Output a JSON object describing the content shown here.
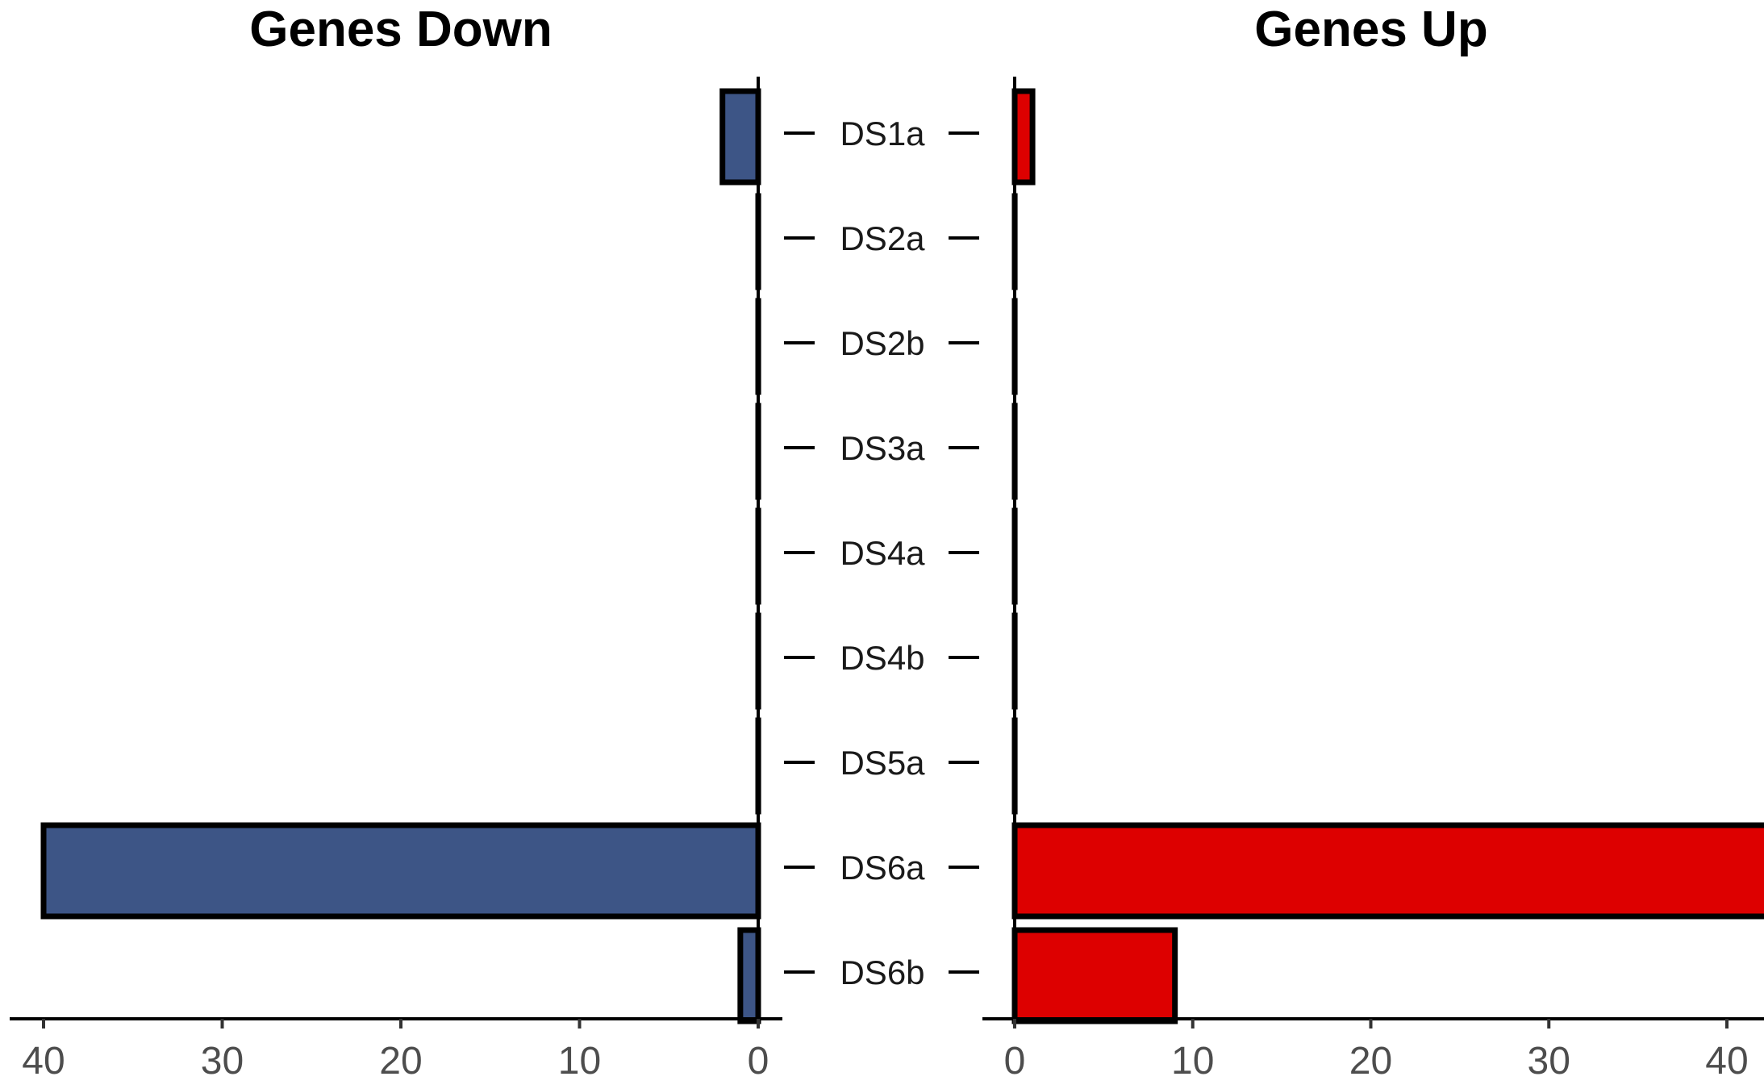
{
  "chart_data": [
    {
      "type": "bar",
      "orientation": "horizontal",
      "direction": "reversed",
      "title": "Genes Down",
      "categories": [
        "DS1a",
        "DS2a",
        "DS2b",
        "DS3a",
        "DS4a",
        "DS4b",
        "DS5a",
        "DS6a",
        "DS6b"
      ],
      "values": [
        2,
        0,
        0,
        0,
        0,
        0,
        0,
        40,
        1
      ],
      "xticks": [
        40,
        30,
        20,
        10,
        0
      ],
      "xlim": [
        0,
        42
      ],
      "color": "#3d5586",
      "grid": false
    },
    {
      "type": "bar",
      "orientation": "horizontal",
      "title": "Genes Up",
      "categories": [
        "DS1a",
        "DS2a",
        "DS2b",
        "DS3a",
        "DS4a",
        "DS4b",
        "DS5a",
        "DS6a",
        "DS6b"
      ],
      "values": [
        1,
        0,
        0,
        0,
        0,
        0,
        0,
        45,
        9
      ],
      "xticks": [
        0,
        10,
        20,
        30,
        40
      ],
      "xlim": [
        0,
        47
      ],
      "color": "#dd0000",
      "grid": false
    }
  ]
}
